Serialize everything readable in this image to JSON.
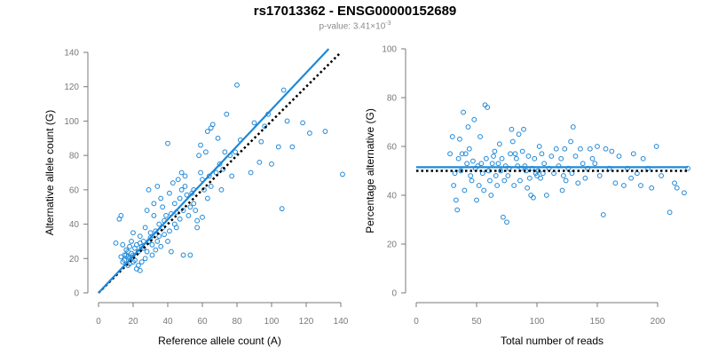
{
  "title": "rs17013362 - ENSG00000152689",
  "subtitle": {
    "prefix": "p-value: 3.41×10",
    "exponent": "-3"
  },
  "colors": {
    "points": "#1e88d8",
    "fit_line": "#1e88d8",
    "reference_line": "#000000",
    "axis": "#7a7a7a"
  },
  "chart_data": [
    {
      "type": "scatter",
      "xlabel": "Reference allele count (A)",
      "ylabel": "Alternative allele count (G)",
      "xlim": [
        0,
        140
      ],
      "ylim": [
        0,
        140
      ],
      "xticks": [
        0,
        20,
        40,
        60,
        80,
        100,
        120,
        140
      ],
      "yticks": [
        0,
        20,
        40,
        60,
        80,
        100,
        120,
        140
      ],
      "points": [
        [
          10,
          29
        ],
        [
          12,
          43
        ],
        [
          13,
          45
        ],
        [
          13,
          21
        ],
        [
          14,
          18
        ],
        [
          14,
          28
        ],
        [
          15,
          22
        ],
        [
          15,
          19
        ],
        [
          16,
          22
        ],
        [
          16,
          25
        ],
        [
          17,
          16
        ],
        [
          17,
          21
        ],
        [
          17,
          24
        ],
        [
          18,
          20
        ],
        [
          18,
          27
        ],
        [
          18,
          17
        ],
        [
          19,
          30
        ],
        [
          19,
          23
        ],
        [
          20,
          22
        ],
        [
          20,
          18
        ],
        [
          20,
          35
        ],
        [
          21,
          26
        ],
        [
          21,
          19
        ],
        [
          22,
          14
        ],
        [
          22,
          28
        ],
        [
          23,
          24
        ],
        [
          23,
          16
        ],
        [
          24,
          13
        ],
        [
          24,
          29
        ],
        [
          24,
          33
        ],
        [
          25,
          18
        ],
        [
          25,
          27
        ],
        [
          26,
          30
        ],
        [
          26,
          26
        ],
        [
          27,
          20
        ],
        [
          27,
          38
        ],
        [
          28,
          24
        ],
        [
          28,
          48
        ],
        [
          29,
          30
        ],
        [
          29,
          60
        ],
        [
          30,
          35
        ],
        [
          30,
          32
        ],
        [
          31,
          28
        ],
        [
          31,
          22
        ],
        [
          32,
          45
        ],
        [
          32,
          52
        ],
        [
          33,
          36
        ],
        [
          33,
          25
        ],
        [
          34,
          30
        ],
        [
          34,
          62
        ],
        [
          35,
          40
        ],
        [
          35,
          33
        ],
        [
          36,
          55
        ],
        [
          36,
          27
        ],
        [
          37,
          38
        ],
        [
          37,
          50
        ],
        [
          38,
          42
        ],
        [
          38,
          34
        ],
        [
          39,
          45
        ],
        [
          40,
          87
        ],
        [
          40,
          30
        ],
        [
          41,
          58
        ],
        [
          41,
          36
        ],
        [
          42,
          46
        ],
        [
          42,
          24
        ],
        [
          43,
          64
        ],
        [
          44,
          40
        ],
        [
          44,
          52
        ],
        [
          45,
          38
        ],
        [
          45,
          47
        ],
        [
          46,
          66
        ],
        [
          47,
          43
        ],
        [
          47,
          55
        ],
        [
          48,
          70
        ],
        [
          48,
          60
        ],
        [
          49,
          22
        ],
        [
          49,
          48
        ],
        [
          50,
          62
        ],
        [
          50,
          68
        ],
        [
          51,
          57
        ],
        [
          52,
          45
        ],
        [
          53,
          50
        ],
        [
          53,
          22
        ],
        [
          54,
          58
        ],
        [
          55,
          60
        ],
        [
          55,
          52
        ],
        [
          56,
          48
        ],
        [
          57,
          42
        ],
        [
          57,
          38
        ],
        [
          58,
          80
        ],
        [
          59,
          70
        ],
        [
          59,
          86
        ],
        [
          60,
          44
        ],
        [
          60,
          66
        ],
        [
          61,
          60
        ],
        [
          62,
          82
        ],
        [
          63,
          55
        ],
        [
          63,
          94
        ],
        [
          64,
          68
        ],
        [
          65,
          96
        ],
        [
          65,
          62
        ],
        [
          66,
          98
        ],
        [
          68,
          70
        ],
        [
          69,
          90
        ],
        [
          70,
          75
        ],
        [
          71,
          60
        ],
        [
          72,
          72
        ],
        [
          73,
          82
        ],
        [
          74,
          104
        ],
        [
          76,
          80
        ],
        [
          77,
          68
        ],
        [
          79,
          82
        ],
        [
          80,
          121
        ],
        [
          82,
          89
        ],
        [
          88,
          70
        ],
        [
          90,
          99
        ],
        [
          93,
          76
        ],
        [
          94,
          88
        ],
        [
          96,
          97
        ],
        [
          98,
          104
        ],
        [
          100,
          75
        ],
        [
          104,
          85
        ],
        [
          106,
          49
        ],
        [
          107,
          118
        ],
        [
          109,
          100
        ],
        [
          112,
          85
        ],
        [
          118,
          99
        ],
        [
          122,
          93
        ],
        [
          131,
          94
        ],
        [
          141,
          69
        ]
      ],
      "fit_line": [
        [
          0,
          0
        ],
        [
          133,
          142
        ]
      ],
      "reference_line": [
        [
          0,
          0
        ],
        [
          140,
          140
        ]
      ],
      "grid": false,
      "legend": "none"
    },
    {
      "type": "scatter",
      "xlabel": "Total number of reads",
      "ylabel": "Percentage alternative (G)",
      "xlim": [
        0,
        225
      ],
      "ylim": [
        0,
        100
      ],
      "xticks": [
        0,
        50,
        100,
        150,
        200
      ],
      "yticks": [
        0,
        20,
        40,
        60,
        80,
        100
      ],
      "points": [
        [
          28,
          57
        ],
        [
          30,
          64
        ],
        [
          31,
          44
        ],
        [
          32,
          49
        ],
        [
          33,
          38
        ],
        [
          34,
          34
        ],
        [
          35,
          55
        ],
        [
          36,
          63
        ],
        [
          37,
          50
        ],
        [
          38,
          57
        ],
        [
          39,
          74
        ],
        [
          40,
          42
        ],
        [
          41,
          57
        ],
        [
          42,
          53
        ],
        [
          43,
          68
        ],
        [
          44,
          59
        ],
        [
          45,
          48
        ],
        [
          46,
          46
        ],
        [
          47,
          54
        ],
        [
          48,
          71
        ],
        [
          49,
          51
        ],
        [
          50,
          38
        ],
        [
          51,
          52
        ],
        [
          52,
          44
        ],
        [
          53,
          64
        ],
        [
          54,
          53
        ],
        [
          55,
          49
        ],
        [
          56,
          42
        ],
        [
          57,
          77
        ],
        [
          58,
          55
        ],
        [
          59,
          76
        ],
        [
          60,
          50
        ],
        [
          61,
          46
        ],
        [
          62,
          40
        ],
        [
          63,
          53
        ],
        [
          64,
          56
        ],
        [
          65,
          58
        ],
        [
          66,
          48
        ],
        [
          67,
          44
        ],
        [
          68,
          53
        ],
        [
          69,
          61
        ],
        [
          70,
          50
        ],
        [
          71,
          55
        ],
        [
          72,
          31
        ],
        [
          73,
          46
        ],
        [
          74,
          52
        ],
        [
          75,
          29
        ],
        [
          76,
          48
        ],
        [
          77,
          51
        ],
        [
          78,
          57
        ],
        [
          79,
          67
        ],
        [
          80,
          62
        ],
        [
          81,
          44
        ],
        [
          82,
          57
        ],
        [
          83,
          55
        ],
        [
          84,
          52
        ],
        [
          85,
          65
        ],
        [
          86,
          46
        ],
        [
          87,
          51
        ],
        [
          88,
          58
        ],
        [
          89,
          67
        ],
        [
          90,
          52
        ],
        [
          91,
          50
        ],
        [
          92,
          43
        ],
        [
          93,
          56
        ],
        [
          94,
          47
        ],
        [
          95,
          40
        ],
        [
          96,
          51
        ],
        [
          97,
          39
        ],
        [
          98,
          55
        ],
        [
          99,
          49
        ],
        [
          100,
          48
        ],
        [
          101,
          50
        ],
        [
          102,
          60
        ],
        [
          103,
          47
        ],
        [
          104,
          57
        ],
        [
          105,
          49
        ],
        [
          106,
          53
        ],
        [
          108,
          40
        ],
        [
          110,
          51
        ],
        [
          112,
          56
        ],
        [
          114,
          49
        ],
        [
          116,
          59
        ],
        [
          118,
          52
        ],
        [
          120,
          55
        ],
        [
          121,
          42
        ],
        [
          122,
          48
        ],
        [
          123,
          59
        ],
        [
          124,
          46
        ],
        [
          126,
          51
        ],
        [
          128,
          62
        ],
        [
          129,
          49
        ],
        [
          130,
          68
        ],
        [
          132,
          56
        ],
        [
          134,
          45
        ],
        [
          136,
          59
        ],
        [
          138,
          53
        ],
        [
          140,
          47
        ],
        [
          142,
          51
        ],
        [
          144,
          59
        ],
        [
          146,
          55
        ],
        [
          148,
          53
        ],
        [
          150,
          60
        ],
        [
          152,
          48
        ],
        [
          155,
          32
        ],
        [
          157,
          59
        ],
        [
          160,
          51
        ],
        [
          162,
          58
        ],
        [
          165,
          45
        ],
        [
          168,
          56
        ],
        [
          172,
          44
        ],
        [
          175,
          51
        ],
        [
          178,
          47
        ],
        [
          180,
          57
        ],
        [
          183,
          49
        ],
        [
          186,
          44
        ],
        [
          188,
          55
        ],
        [
          192,
          51
        ],
        [
          195,
          43
        ],
        [
          199,
          60
        ],
        [
          203,
          48
        ],
        [
          210,
          33
        ],
        [
          214,
          45
        ],
        [
          216,
          43
        ],
        [
          222,
          41
        ],
        [
          225,
          51
        ]
      ],
      "fit_line": [
        [
          0,
          51.5
        ],
        [
          225,
          51.5
        ]
      ],
      "reference_line": [
        [
          0,
          50
        ],
        [
          225,
          50
        ]
      ],
      "grid": false,
      "legend": "none"
    }
  ]
}
